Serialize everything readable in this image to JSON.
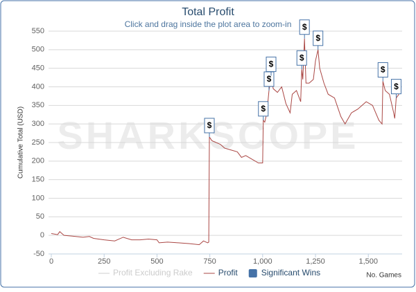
{
  "chart_data": {
    "type": "line",
    "title": "Total Profit",
    "subtitle": "Click and drag inside the plot area to zoom-in",
    "watermark": "SHARKSCOPE",
    "ylabel": "Cumulative Total (USD)",
    "xlabel": "No. Games",
    "xlim": [
      0,
      1660
    ],
    "ylim": [
      -50,
      550
    ],
    "xticks": [
      0,
      250,
      500,
      750,
      {
        "value": 1000,
        "label": "1,000"
      },
      {
        "value": 1250,
        "label": "1,250"
      },
      {
        "value": 1500,
        "label": "1,500"
      }
    ],
    "yticks": [
      -50,
      0,
      50,
      100,
      150,
      200,
      250,
      300,
      350,
      400,
      450,
      500,
      550
    ],
    "grid": true,
    "series": [
      {
        "name": "Profit Excluding Rake",
        "color": "#cccccc",
        "visible": false
      },
      {
        "name": "Profit",
        "color": "#aa4643",
        "visible": true,
        "x": [
          0,
          30,
          40,
          60,
          100,
          150,
          180,
          200,
          250,
          300,
          340,
          380,
          420,
          460,
          500,
          510,
          550,
          600,
          650,
          700,
          720,
          740,
          745,
          748,
          760,
          800,
          820,
          850,
          880,
          900,
          920,
          950,
          980,
          1000,
          1003,
          1010,
          1020,
          1030,
          1040,
          1050,
          1070,
          1090,
          1110,
          1130,
          1140,
          1160,
          1180,
          1185,
          1190,
          1198,
          1205,
          1220,
          1240,
          1250,
          1262,
          1270,
          1290,
          1310,
          1340,
          1370,
          1390,
          1420,
          1450,
          1470,
          1490,
          1520,
          1550,
          1565,
          1569,
          1580,
          1600,
          1620,
          1625,
          1632,
          1645
        ],
        "values": [
          5,
          2,
          10,
          0,
          -2,
          -5,
          -3,
          -8,
          -12,
          -15,
          -5,
          -12,
          -12,
          -10,
          -12,
          -20,
          -18,
          -20,
          -22,
          -25,
          -15,
          -20,
          -18,
          265,
          255,
          245,
          235,
          230,
          225,
          210,
          215,
          205,
          195,
          195,
          310,
          305,
          330,
          390,
          430,
          395,
          385,
          400,
          355,
          330,
          380,
          390,
          360,
          447,
          420,
          530,
          410,
          410,
          420,
          470,
          500,
          450,
          410,
          380,
          370,
          320,
          300,
          330,
          340,
          350,
          360,
          350,
          310,
          300,
          415,
          390,
          380,
          330,
          315,
          370,
          380
        ]
      }
    ],
    "significant_wins": {
      "name": "Significant Wins",
      "color": "#4572a7",
      "label": "$",
      "x": [
        748,
        1003,
        1030,
        1040,
        1185,
        1198,
        1262,
        1569,
        1632
      ],
      "values": [
        265,
        310,
        390,
        430,
        447,
        530,
        500,
        415,
        370
      ]
    }
  }
}
